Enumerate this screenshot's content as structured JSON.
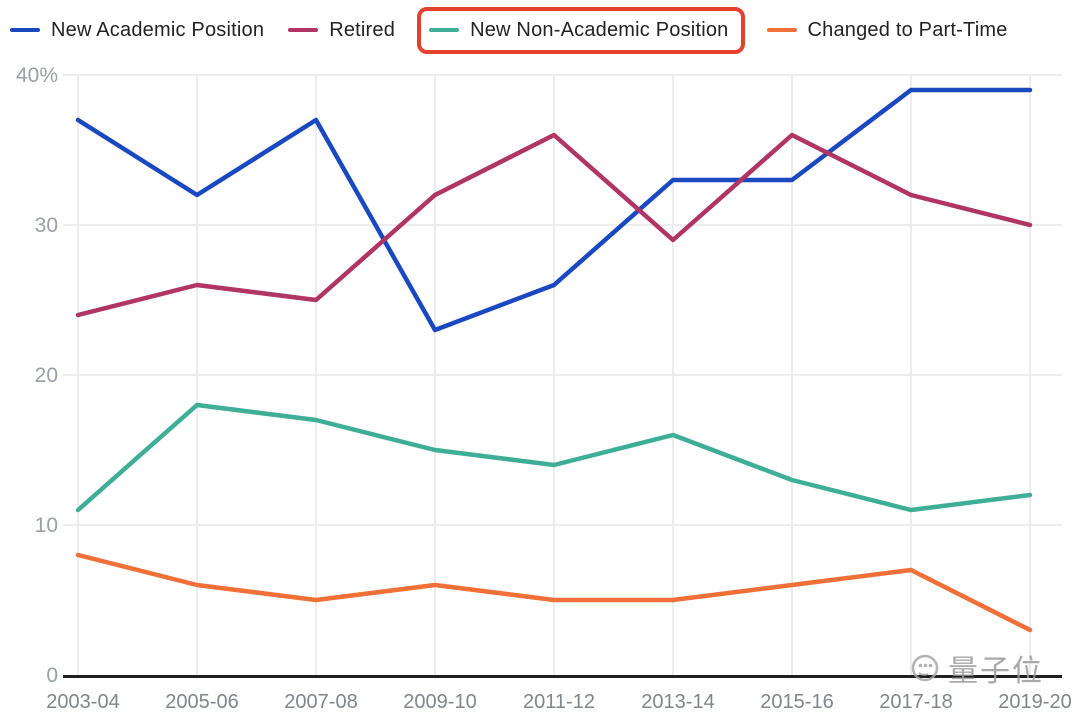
{
  "legend": {
    "items": [
      {
        "label": "New Academic Position",
        "color": "#1a48c0"
      },
      {
        "label": "Retired",
        "color": "#b03563"
      },
      {
        "label": "New Non-Academic Position",
        "color": "#3fae97",
        "highlighted": true
      },
      {
        "label": "Changed to Part-Time",
        "color": "#f07038"
      }
    ],
    "highlight_box_color": "#e4402e"
  },
  "watermark": {
    "text": "量子位"
  },
  "chart_data": {
    "type": "line",
    "title": "",
    "xlabel": "",
    "ylabel": "",
    "categories": [
      "2003-04",
      "2005-06",
      "2007-08",
      "2009-10",
      "2011-12",
      "2013-14",
      "2015-16",
      "2017-18",
      "2019-20"
    ],
    "series": [
      {
        "name": "New Academic Position",
        "color": "#1a48c0",
        "values": [
          37,
          32,
          37,
          23,
          26,
          33,
          33,
          39,
          39
        ]
      },
      {
        "name": "Retired",
        "color": "#b03563",
        "values": [
          24,
          26,
          25,
          32,
          36,
          29,
          36,
          32,
          30
        ]
      },
      {
        "name": "New Non-Academic Position",
        "color": "#3fae97",
        "values": [
          11,
          18,
          17,
          15,
          14,
          16,
          13,
          11,
          12
        ]
      },
      {
        "name": "Changed to Part-Time",
        "color": "#f07038",
        "values": [
          8,
          6,
          5,
          6,
          5,
          5,
          6,
          7,
          3
        ]
      }
    ],
    "ylim": [
      0,
      40
    ],
    "y_ticks": [
      {
        "value": 0,
        "label": "0"
      },
      {
        "value": 10,
        "label": "10"
      },
      {
        "value": 20,
        "label": "20"
      },
      {
        "value": 30,
        "label": "30"
      },
      {
        "value": 40,
        "label": "40%"
      }
    ],
    "grid": true,
    "legend_position": "top",
    "axis_color": "#1f1f1f",
    "grid_color": "#ededed",
    "y_tick_color": "#9aa0a6",
    "x_tick_color": "#80868b"
  }
}
